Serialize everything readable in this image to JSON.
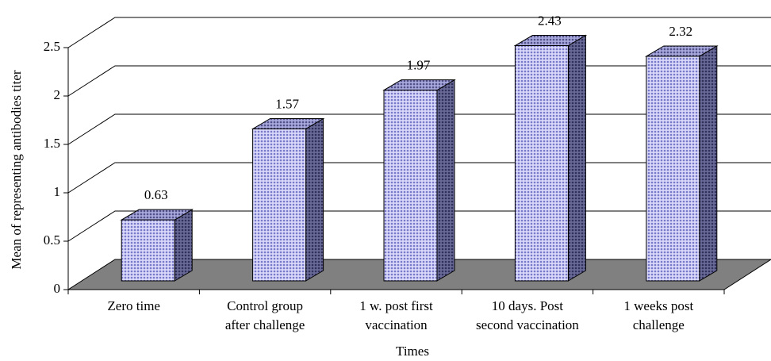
{
  "chart_data": {
    "type": "bar3d",
    "categories": [
      [
        "Zero time"
      ],
      [
        "Control group",
        "after challenge"
      ],
      [
        "1 w. post first",
        "vaccination"
      ],
      [
        "10 days. Post",
        "second vaccination"
      ],
      [
        "1 weeks post",
        "challenge"
      ]
    ],
    "values": [
      0.63,
      1.57,
      1.97,
      2.43,
      2.32
    ],
    "value_labels": [
      "0.63",
      "1.57",
      "1.97",
      "2.43",
      "2.32"
    ],
    "y_label": "Mean of representing antibodies titer",
    "x_label": "Times",
    "ylim": [
      0,
      2.5
    ],
    "yticks": [
      0,
      0.5,
      1,
      1.5,
      2,
      2.5
    ],
    "grid": true,
    "color": "#b4b4f0"
  }
}
